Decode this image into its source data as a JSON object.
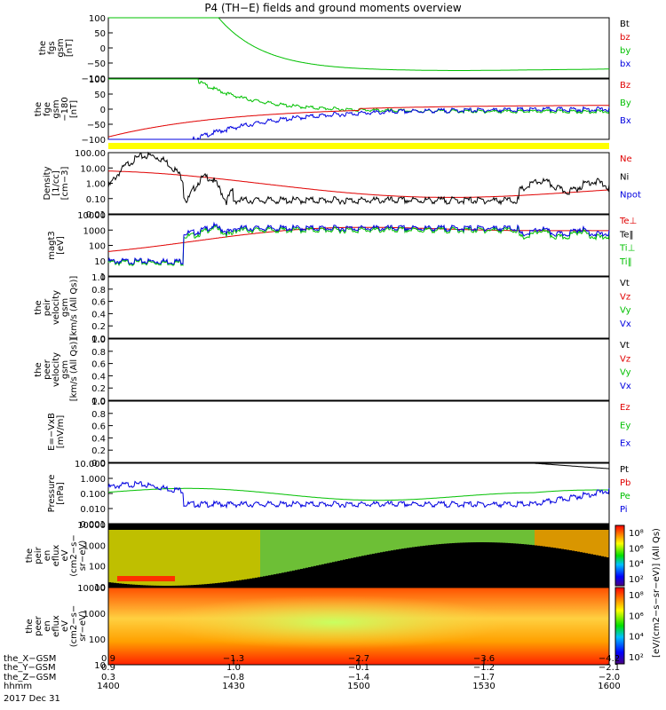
{
  "title": "P4 (TH−E) fields and ground moments overview",
  "panels": [
    {
      "id": "fgs",
      "ylabel": [
        "the",
        "fgs",
        "gsm",
        "[nT]"
      ],
      "ticks": [
        "100",
        "50",
        "0",
        "−50",
        "−100"
      ],
      "legend": [
        {
          "label": "Bt",
          "color": "#000000"
        },
        {
          "label": "bz",
          "color": "#e00000"
        },
        {
          "label": "by",
          "color": "#00c000"
        },
        {
          "label": "bx",
          "color": "#0000e0"
        }
      ]
    },
    {
      "id": "fge",
      "ylabel": [
        "the",
        "fge",
        "gsm",
        "−180",
        "[nT]"
      ],
      "ticks": [
        "100",
        "50",
        "0",
        "−50",
        "−100"
      ],
      "legend": [
        {
          "label": "Bz",
          "color": "#e00000"
        },
        {
          "label": "By",
          "color": "#00c000"
        },
        {
          "label": "Bx",
          "color": "#0000e0"
        }
      ]
    },
    {
      "id": "density",
      "ylabel": [
        "Density",
        "[1/cc]",
        "[cm−3]"
      ],
      "ticks": [
        "100.00",
        "10.00",
        "1.00",
        "0.10",
        "0.01"
      ],
      "legend": [
        {
          "label": "Ne",
          "color": "#e00000"
        },
        {
          "label": "Ni",
          "color": "#000000"
        },
        {
          "label": "Npot",
          "color": "#0000e0"
        }
      ]
    },
    {
      "id": "temp",
      "ylabel": [
        "magt3",
        "[eV]"
      ],
      "ticks": [
        "10000",
        "1000",
        "100",
        "10",
        "1"
      ],
      "legend": [
        {
          "label": "Te⊥",
          "color": "#e00000"
        },
        {
          "label": "Te‖",
          "color": "#000000"
        },
        {
          "label": "Ti⊥",
          "color": "#00c000"
        },
        {
          "label": "Ti‖",
          "color": "#00c000"
        }
      ]
    },
    {
      "id": "peir_v",
      "ylabel": [
        "the",
        "peir",
        "velocity",
        "gsm",
        "[km/s (All Qs)]"
      ],
      "ticks": [
        "1.0",
        "0.8",
        "0.6",
        "0.4",
        "0.2",
        "0.0"
      ],
      "legend": [
        {
          "label": "Vt",
          "color": "#000000"
        },
        {
          "label": "Vz",
          "color": "#e00000"
        },
        {
          "label": "Vy",
          "color": "#00c000"
        },
        {
          "label": "Vx",
          "color": "#0000e0"
        }
      ]
    },
    {
      "id": "peer_v",
      "ylabel": [
        "the",
        "peer",
        "velocity",
        "gsm",
        "[km/s (All Qs)]"
      ],
      "ticks": [
        "1.0",
        "0.8",
        "0.6",
        "0.4",
        "0.2",
        "0.0"
      ],
      "legend": [
        {
          "label": "Vt",
          "color": "#000000"
        },
        {
          "label": "Vz",
          "color": "#e00000"
        },
        {
          "label": "Vy",
          "color": "#00c000"
        },
        {
          "label": "Vx",
          "color": "#0000e0"
        }
      ]
    },
    {
      "id": "efield",
      "ylabel": [
        "E=−VxB",
        "[mV/m]"
      ],
      "ticks": [
        "1.0",
        "0.8",
        "0.6",
        "0.4",
        "0.2",
        "0.0"
      ],
      "legend": [
        {
          "label": "Ez",
          "color": "#e00000"
        },
        {
          "label": "Ey",
          "color": "#00c000"
        },
        {
          "label": "Ex",
          "color": "#0000e0"
        }
      ]
    },
    {
      "id": "pressure",
      "ylabel": [
        "Pressure",
        "[nPa]"
      ],
      "ticks": [
        "10.000",
        "1.000",
        "0.100",
        "0.010",
        "0.001"
      ],
      "legend": [
        {
          "label": "Pt",
          "color": "#000000"
        },
        {
          "label": "Pb",
          "color": "#e00000"
        },
        {
          "label": "Pe",
          "color": "#00c000"
        },
        {
          "label": "Pi",
          "color": "#0000e0"
        }
      ]
    },
    {
      "id": "peir_spec",
      "ylabel": [
        "the",
        "peir",
        "en",
        "eflux",
        "eV",
        "(cm2−s−",
        "sr−eV)"
      ],
      "ticks": [
        "10000",
        "1000",
        "100",
        "10"
      ]
    },
    {
      "id": "peer_spec",
      "ylabel": [
        "the",
        "peer",
        "en",
        "eflux",
        "eV",
        "(cm2−s−",
        "sr−eV)"
      ],
      "ticks": [
        "10000",
        "1000",
        "100",
        "10"
      ]
    }
  ],
  "colorbar": {
    "label": "[eV/(cm2−s−sr−eV)] (All Qs)",
    "spec1_ticks": [
      "10⁸",
      "10⁶",
      "10⁴",
      "10²"
    ],
    "spec2_ticks": [
      "10⁸",
      "10⁶",
      "10⁴",
      "10²"
    ]
  },
  "xaxis": {
    "row_labels": [
      "the_X−GSM",
      "the_Y−GSM",
      "the_Z−GSM",
      "hhmm",
      "2017 Dec 31"
    ],
    "columns": [
      {
        "x": "0.9",
        "y": "0.9",
        "z": "0.3",
        "t": "1400"
      },
      {
        "x": "−1.3",
        "y": "1.0",
        "z": "−0.8",
        "t": "1430"
      },
      {
        "x": "−2.7",
        "y": "−0.1",
        "z": "−1.4",
        "t": "1500"
      },
      {
        "x": "−3.6",
        "y": "−1.2",
        "z": "−1.7",
        "t": "1530"
      },
      {
        "x": "−4.2",
        "y": "−2.1",
        "z": "−2.0",
        "t": "1600"
      }
    ]
  },
  "chart_data": [
    {
      "type": "line",
      "title": "the fgs gsm [nT]",
      "ylim": [
        -100,
        100
      ],
      "x_range": [
        "1400",
        "1600"
      ],
      "series": [
        {
          "name": "by",
          "values_desc": "enters from 100 at ~1420, decays to ≈ −75 by 1510, slowly rises to ≈ −60 at 1600"
        }
      ]
    },
    {
      "type": "line",
      "title": "the fge gsm −180 [nT]",
      "ylim": [
        -100,
        100
      ],
      "series": [
        {
          "name": "Bz",
          "start": -100,
          "end": 15
        },
        {
          "name": "By",
          "start": 100,
          "end": 10
        },
        {
          "name": "Bx",
          "start": -100,
          "end": 5
        }
      ]
    },
    {
      "type": "line",
      "title": "Density [1/cc]",
      "yscale": "log",
      "ylim": [
        0.01,
        100
      ],
      "series": [
        {
          "name": "Ni",
          "peak": 150,
          "baseline": 0.05
        },
        {
          "name": "Ne",
          "start": 1.5,
          "min": 0.05,
          "end": 0.3
        }
      ]
    },
    {
      "type": "line",
      "title": "magt3 [eV]",
      "yscale": "log",
      "ylim": [
        1,
        10000
      ],
      "series": [
        {
          "name": "Te⊥",
          "range": [
            200,
            1800
          ]
        },
        {
          "name": "Ti⊥",
          "range": [
            6,
            2000
          ]
        },
        {
          "name": "Ti‖",
          "range": [
            6,
            2000
          ]
        }
      ]
    },
    {
      "type": "line",
      "title": "Pressure [nPa]",
      "yscale": "log",
      "ylim": [
        0.001,
        10
      ],
      "series": [
        {
          "name": "Pe",
          "range": [
            0.01,
            0.2
          ]
        },
        {
          "name": "Pi",
          "range": [
            0.005,
            0.2
          ]
        },
        {
          "name": "Pt",
          "end": 10
        }
      ]
    },
    {
      "type": "heatmap",
      "title": "the peir en eflux",
      "ylim": [
        10,
        20000
      ],
      "yscale": "log"
    },
    {
      "type": "heatmap",
      "title": "the peer en eflux",
      "ylim": [
        10,
        20000
      ],
      "yscale": "log"
    }
  ]
}
